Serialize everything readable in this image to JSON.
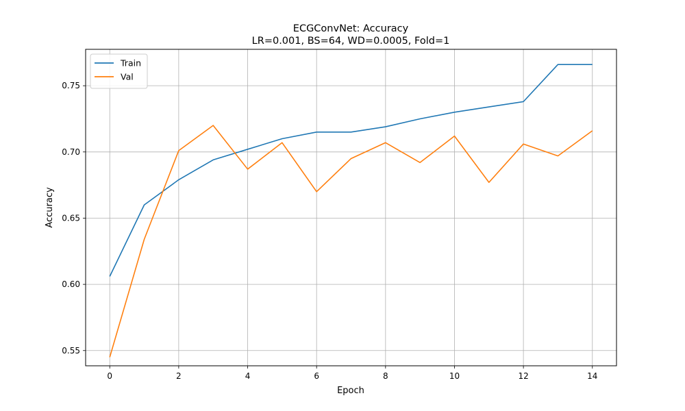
{
  "chart_data": {
    "type": "line",
    "title": "ECGConvNet: Accuracy",
    "subtitle": "LR=0.001, BS=64, WD=0.0005, Fold=1",
    "xlabel": "Epoch",
    "ylabel": "Accuracy",
    "xlim": [
      -0.7,
      14.7
    ],
    "ylim": [
      0.5385,
      0.7775
    ],
    "x_ticks": [
      0,
      2,
      4,
      6,
      8,
      10,
      12,
      14
    ],
    "x_tick_labels": [
      "0",
      "2",
      "4",
      "6",
      "8",
      "10",
      "12",
      "14"
    ],
    "y_ticks": [
      0.55,
      0.6,
      0.65,
      0.7,
      0.75
    ],
    "y_tick_labels": [
      "0.55",
      "0.60",
      "0.65",
      "0.70",
      "0.75"
    ],
    "grid": true,
    "legend_position": "top-left",
    "x": [
      0,
      1,
      2,
      3,
      4,
      5,
      6,
      7,
      8,
      9,
      10,
      11,
      12,
      13,
      14
    ],
    "series": [
      {
        "name": "Train",
        "color": "#1f77b4",
        "values": [
          0.606,
          0.66,
          0.679,
          0.694,
          0.702,
          0.71,
          0.715,
          0.715,
          0.719,
          0.725,
          0.73,
          0.734,
          0.738,
          0.766,
          0.766
        ]
      },
      {
        "name": "Val",
        "color": "#ff7f0e",
        "values": [
          0.545,
          0.634,
          0.701,
          0.72,
          0.687,
          0.707,
          0.67,
          0.695,
          0.707,
          0.692,
          0.712,
          0.677,
          0.706,
          0.697,
          0.716
        ]
      }
    ]
  }
}
